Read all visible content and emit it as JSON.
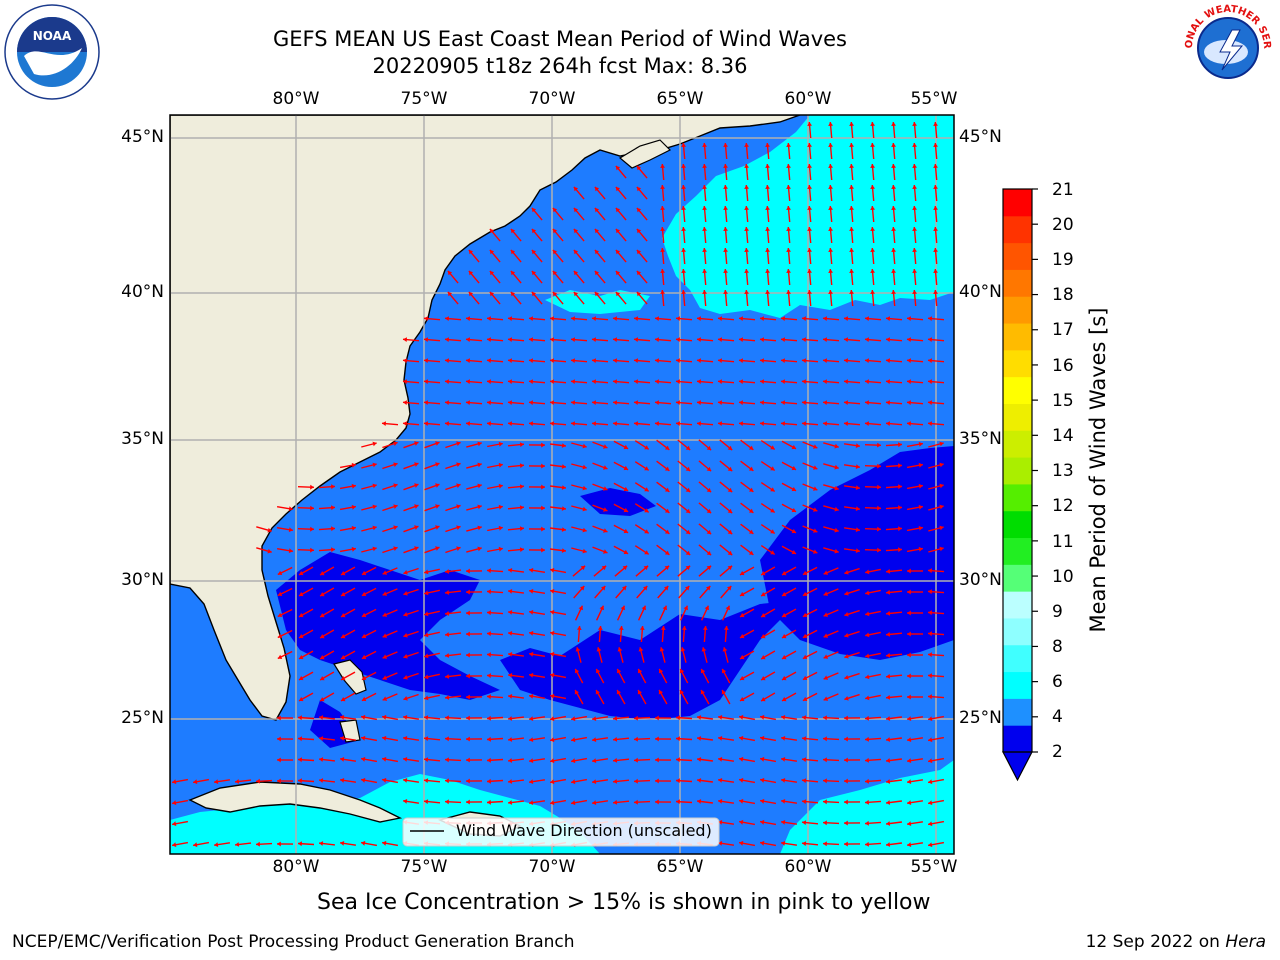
{
  "title": {
    "line1": "GEFS MEAN US East Coast Mean Period of Wind Waves",
    "line2": "20220905 t18z 264h fcst   Max: 8.36"
  },
  "logos": {
    "left": {
      "icon": "noaa-logo",
      "text": "NOAA"
    },
    "right": {
      "icon": "national-weather-service-logo",
      "text": "NATIONAL WEATHER SERVICE"
    }
  },
  "map": {
    "lon_range": [
      -85,
      -54.5
    ],
    "lat_range": [
      20.5,
      46
    ],
    "lon_ticks": [
      "80°W",
      "75°W",
      "70°W",
      "65°W",
      "60°W",
      "55°W"
    ],
    "lat_ticks": [
      "45°N",
      "40°N",
      "35°N",
      "30°N",
      "25°N"
    ],
    "land_color": "#efeddc",
    "gridline_color": "#b0b0b0",
    "arrow_color": "#ff0000",
    "legend_label": "Wind Wave Direction (unscaled)"
  },
  "colorbar": {
    "label": "Mean Period of Wind Waves [s]",
    "ticks": [
      "21",
      "20",
      "19",
      "18",
      "17",
      "16",
      "15",
      "14",
      "13",
      "12",
      "11",
      "10",
      "9",
      "8",
      "6",
      "4",
      "2"
    ],
    "colors": [
      "#0000ee",
      "#1e90ff",
      "#00ffff",
      "#40ffff",
      "#8effff",
      "#bbffff",
      "#55ff77",
      "#22ee22",
      "#00dd00",
      "#55ee00",
      "#aaee00",
      "#ccee00",
      "#eeee00",
      "#ffff00",
      "#ffdd00",
      "#ffbb00",
      "#ff9900",
      "#ff7700",
      "#ff5500",
      "#ff3300",
      "#ff0000"
    ],
    "under_color": "#0000ee"
  },
  "subtitle": "Sea Ice Concentration > 15% is shown in pink to yellow",
  "footer": {
    "left": "NCEP/EMC/Verification Post Processing Product Generation Branch",
    "right_date": "12 Sep 2022 on ",
    "right_host": "Hera"
  }
}
